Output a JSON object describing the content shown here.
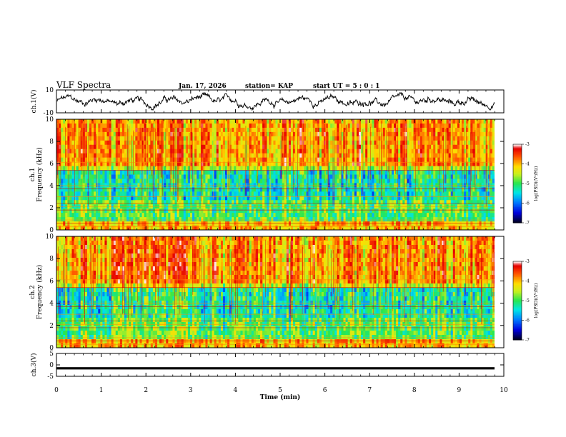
{
  "header": {
    "title": "VLF Spectra",
    "date": "Jan. 17, 2026",
    "station": "station= KAP",
    "start_time": "start UT =  5 : 0 : 1"
  },
  "chart_data": [
    {
      "type": "line",
      "name": "ch1-waveform",
      "ylabel": "ch.1(V)",
      "ylim": [
        -10,
        10
      ],
      "yticks": [
        "10",
        "-10"
      ],
      "xlim": [
        0,
        10
      ],
      "description_series": "noisy oscillating waveform, approx -5 to 5 V"
    },
    {
      "type": "heatmap",
      "name": "ch1-spectrogram",
      "ylabel_top": "ch.1",
      "ylabel": "Frequency (kHz)",
      "ylim": [
        0,
        10
      ],
      "yticks": [
        "0",
        "2",
        "4",
        "6",
        "8",
        "10"
      ],
      "xlim": [
        0,
        9.8
      ],
      "colorbar": {
        "label": "log(PSD)(V²/Hz)",
        "range": [
          -7,
          -3
        ],
        "ticks": [
          "-3",
          "-4",
          "-5",
          "-6",
          "-7"
        ]
      }
    },
    {
      "type": "heatmap",
      "name": "ch2-spectrogram",
      "ylabel_top": "ch.2",
      "ylabel": "Frequency (kHz)",
      "ylim": [
        0,
        10
      ],
      "yticks": [
        "0",
        "2",
        "4",
        "6",
        "8",
        "10"
      ],
      "xlim": [
        0,
        9.8
      ],
      "colorbar": {
        "label": "log(PSD)(V²/Hz)",
        "range": [
          -7,
          -3
        ],
        "ticks": [
          "-3",
          "-4",
          "-5",
          "-6",
          "-7"
        ]
      }
    },
    {
      "type": "line",
      "name": "ch3-waveform",
      "ylabel": "ch.3(V)",
      "ylim": [
        -5,
        5
      ],
      "yticks": [
        "5",
        "0",
        "-5"
      ],
      "xlim": [
        0,
        10
      ],
      "level": -1.5,
      "thickness_v": 1.0
    }
  ],
  "xaxis": {
    "label": "Time (min)",
    "range": [
      0,
      10
    ],
    "ticks": [
      "0",
      "1",
      "2",
      "3",
      "4",
      "5",
      "6",
      "7",
      "8",
      "9",
      "10"
    ]
  }
}
